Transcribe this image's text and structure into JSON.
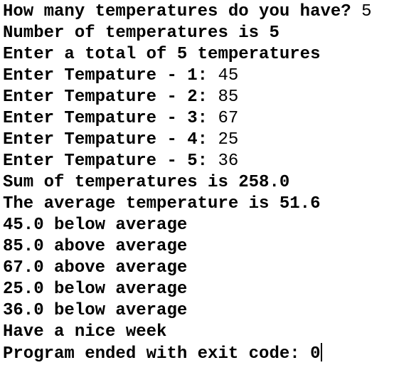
{
  "lines": [
    {
      "text": "How many temperatures do you have?",
      "input": "5"
    },
    {
      "text": "Number of temperatures is 5"
    },
    {
      "text": "Enter a total of 5 temperatures"
    },
    {
      "text": "Enter Tempature - 1:",
      "input": "45"
    },
    {
      "text": "Enter Tempature - 2:",
      "input": "85"
    },
    {
      "text": "Enter Tempature - 3:",
      "input": "67"
    },
    {
      "text": "Enter Tempature - 4:",
      "input": "25"
    },
    {
      "text": "Enter Tempature - 5:",
      "input": "36"
    },
    {
      "text": "Sum of temperatures is 258.0"
    },
    {
      "text": "The average temperature is 51.6"
    },
    {
      "text": "45.0 below average"
    },
    {
      "text": "85.0 above average"
    },
    {
      "text": "67.0 above average"
    },
    {
      "text": "25.0 below average"
    },
    {
      "text": "36.0 below average"
    },
    {
      "text": "Have a nice week"
    },
    {
      "text": "Program ended with exit code: 0"
    }
  ]
}
